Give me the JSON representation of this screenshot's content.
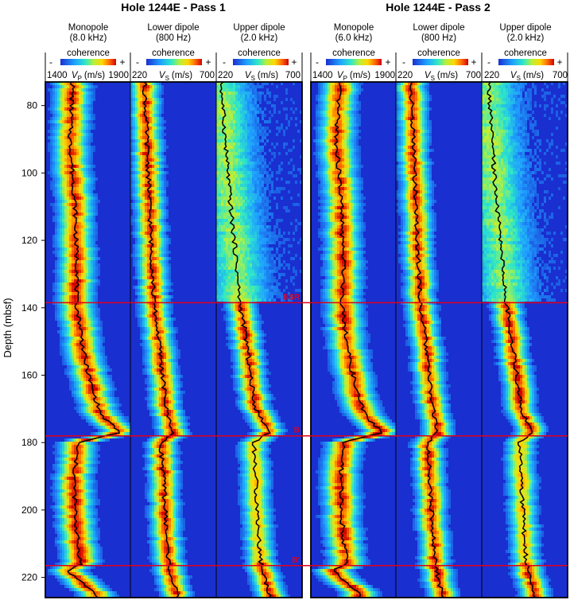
{
  "chart_data": {
    "type": "heatmap",
    "ylabel": "Depth (mbsf)",
    "ylim": [
      73,
      226
    ],
    "yticks": [
      80,
      100,
      120,
      140,
      160,
      180,
      200,
      220
    ],
    "reference_lines": [
      {
        "label": "BSR",
        "depth": 138.5,
        "color": "#e0001a"
      },
      {
        "label": "B",
        "depth": 178.0,
        "color": "#e0001a"
      },
      {
        "label": "B'",
        "depth": 216.5,
        "color": "#e0001a"
      }
    ],
    "panels": [
      {
        "title": "Hole 1244E - Pass 1",
        "tracks": [
          {
            "name_line1": "Monopole",
            "name_line2": "(8.0 kHz)",
            "scale_label": "coherence",
            "minus": "-",
            "plus": "+",
            "xmin_label": "1400",
            "xmax_label": "1900",
            "axis_label": "V",
            "axis_sub": "P",
            "axis_unit": "(m/s)",
            "xlim": [
              1400,
              1900
            ],
            "velocity_profile": [
              {
                "depth": 75,
                "v": 1560
              },
              {
                "depth": 90,
                "v": 1545
              },
              {
                "depth": 100,
                "v": 1560
              },
              {
                "depth": 110,
                "v": 1575
              },
              {
                "depth": 120,
                "v": 1580
              },
              {
                "depth": 130,
                "v": 1590
              },
              {
                "depth": 138,
                "v": 1580
              },
              {
                "depth": 145,
                "v": 1605
              },
              {
                "depth": 155,
                "v": 1630
              },
              {
                "depth": 165,
                "v": 1680
              },
              {
                "depth": 172,
                "v": 1730
              },
              {
                "depth": 177,
                "v": 1840
              },
              {
                "depth": 180,
                "v": 1590
              },
              {
                "depth": 190,
                "v": 1570
              },
              {
                "depth": 200,
                "v": 1575
              },
              {
                "depth": 210,
                "v": 1590
              },
              {
                "depth": 216,
                "v": 1610
              },
              {
                "depth": 218,
                "v": 1530
              },
              {
                "depth": 225,
                "v": 1700
              }
            ]
          },
          {
            "name_line1": "Lower dipole",
            "name_line2": "(800 Hz)",
            "scale_label": "coherence",
            "minus": "-",
            "plus": "+",
            "xmin_label": "220",
            "xmax_label": "700",
            "axis_label": "V",
            "axis_sub": "S",
            "axis_unit": "(m/s)",
            "xlim": [
              220,
              700
            ],
            "velocity_profile": [
              {
                "depth": 75,
                "v": 300
              },
              {
                "depth": 100,
                "v": 320
              },
              {
                "depth": 120,
                "v": 335
              },
              {
                "depth": 130,
                "v": 345
              },
              {
                "depth": 138,
                "v": 350
              },
              {
                "depth": 150,
                "v": 380
              },
              {
                "depth": 160,
                "v": 400
              },
              {
                "depth": 170,
                "v": 420
              },
              {
                "depth": 177,
                "v": 460
              },
              {
                "depth": 180,
                "v": 390
              },
              {
                "depth": 190,
                "v": 405
              },
              {
                "depth": 200,
                "v": 415
              },
              {
                "depth": 210,
                "v": 425
              },
              {
                "depth": 216,
                "v": 435
              },
              {
                "depth": 220,
                "v": 450
              },
              {
                "depth": 225,
                "v": 480
              }
            ]
          },
          {
            "name_line1": "Upper dipole",
            "name_line2": "(2.0 kHz)",
            "scale_label": "coherence",
            "minus": "-",
            "plus": "+",
            "xmin_label": "220",
            "xmax_label": "700",
            "axis_label": "V",
            "axis_sub": "S",
            "axis_unit": "(m/s)",
            "xlim": [
              220,
              700
            ],
            "velocity_profile": [
              {
                "depth": 75,
                "v": 250
              },
              {
                "depth": 90,
                "v": 270
              },
              {
                "depth": 110,
                "v": 300
              },
              {
                "depth": 125,
                "v": 330
              },
              {
                "depth": 138,
                "v": 350
              },
              {
                "depth": 150,
                "v": 390
              },
              {
                "depth": 160,
                "v": 410
              },
              {
                "depth": 170,
                "v": 440
              },
              {
                "depth": 177,
                "v": 520
              },
              {
                "depth": 180,
                "v": 430
              },
              {
                "depth": 190,
                "v": 440
              },
              {
                "depth": 200,
                "v": 450
              },
              {
                "depth": 210,
                "v": 460
              },
              {
                "depth": 216,
                "v": 470
              },
              {
                "depth": 220,
                "v": 490
              },
              {
                "depth": 225,
                "v": 520
              }
            ]
          }
        ]
      },
      {
        "title": "Hole 1244E - Pass 2",
        "tracks": [
          {
            "name_line1": "Monopole",
            "name_line2": "(6.0 kHz)",
            "scale_label": "coherence",
            "minus": "-",
            "plus": "+",
            "xmin_label": "1400",
            "xmax_label": "1900",
            "axis_label": "V",
            "axis_sub": "P",
            "axis_unit": "(m/s)",
            "xlim": [
              1400,
              1900
            ],
            "velocity_profile": [
              {
                "depth": 75,
                "v": 1565
              },
              {
                "depth": 90,
                "v": 1550
              },
              {
                "depth": 100,
                "v": 1565
              },
              {
                "depth": 110,
                "v": 1580
              },
              {
                "depth": 120,
                "v": 1585
              },
              {
                "depth": 130,
                "v": 1595
              },
              {
                "depth": 138,
                "v": 1585
              },
              {
                "depth": 145,
                "v": 1600
              },
              {
                "depth": 155,
                "v": 1625
              },
              {
                "depth": 165,
                "v": 1670
              },
              {
                "depth": 172,
                "v": 1720
              },
              {
                "depth": 177,
                "v": 1820
              },
              {
                "depth": 180,
                "v": 1590
              },
              {
                "depth": 190,
                "v": 1575
              },
              {
                "depth": 200,
                "v": 1580
              },
              {
                "depth": 210,
                "v": 1595
              },
              {
                "depth": 216,
                "v": 1615
              },
              {
                "depth": 218,
                "v": 1530
              },
              {
                "depth": 225,
                "v": 1690
              }
            ]
          },
          {
            "name_line1": "Lower dipole",
            "name_line2": "(800 Hz)",
            "scale_label": "coherence",
            "minus": "-",
            "plus": "+",
            "xmin_label": "220",
            "xmax_label": "700",
            "axis_label": "V",
            "axis_sub": "S",
            "axis_unit": "(m/s)",
            "xlim": [
              220,
              700
            ],
            "velocity_profile": [
              {
                "depth": 75,
                "v": 305
              },
              {
                "depth": 100,
                "v": 325
              },
              {
                "depth": 120,
                "v": 340
              },
              {
                "depth": 130,
                "v": 350
              },
              {
                "depth": 138,
                "v": 355
              },
              {
                "depth": 150,
                "v": 385
              },
              {
                "depth": 160,
                "v": 405
              },
              {
                "depth": 170,
                "v": 425
              },
              {
                "depth": 177,
                "v": 455
              },
              {
                "depth": 180,
                "v": 395
              },
              {
                "depth": 190,
                "v": 410
              },
              {
                "depth": 200,
                "v": 420
              },
              {
                "depth": 210,
                "v": 430
              },
              {
                "depth": 216,
                "v": 440
              },
              {
                "depth": 220,
                "v": 455
              },
              {
                "depth": 225,
                "v": 480
              }
            ]
          },
          {
            "name_line1": "Upper dipole",
            "name_line2": "(2.0 kHz)",
            "scale_label": "coherence",
            "minus": "-",
            "plus": "+",
            "xmin_label": "220",
            "xmax_label": "700",
            "axis_label": "V",
            "axis_sub": "S",
            "axis_unit": "(m/s)",
            "xlim": [
              220,
              700
            ],
            "velocity_profile": [
              {
                "depth": 75,
                "v": 260
              },
              {
                "depth": 90,
                "v": 275
              },
              {
                "depth": 110,
                "v": 305
              },
              {
                "depth": 125,
                "v": 335
              },
              {
                "depth": 138,
                "v": 355
              },
              {
                "depth": 150,
                "v": 390
              },
              {
                "depth": 160,
                "v": 415
              },
              {
                "depth": 170,
                "v": 440
              },
              {
                "depth": 177,
                "v": 500
              },
              {
                "depth": 180,
                "v": 430
              },
              {
                "depth": 190,
                "v": 440
              },
              {
                "depth": 200,
                "v": 450
              },
              {
                "depth": 210,
                "v": 460
              },
              {
                "depth": 216,
                "v": 470
              },
              {
                "depth": 220,
                "v": 490
              },
              {
                "depth": 225,
                "v": 520
              }
            ]
          }
        ]
      }
    ]
  }
}
